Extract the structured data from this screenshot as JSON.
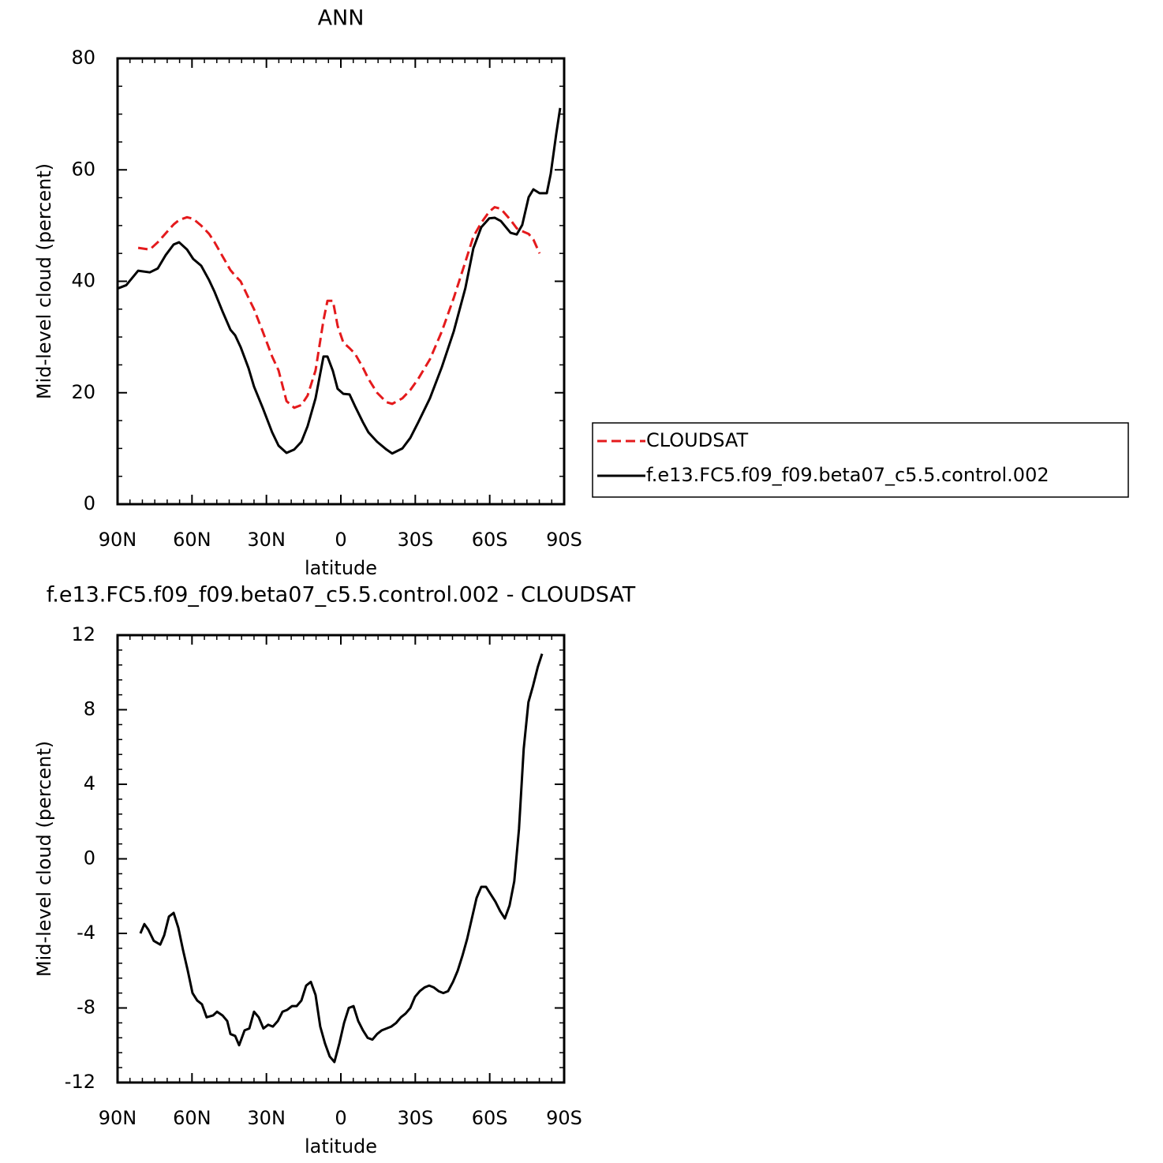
{
  "chart_data": [
    {
      "type": "line",
      "title": "ANN",
      "xlabel": "latitude",
      "ylabel": "Mid-level cloud (percent)",
      "x": [
        90,
        86.5,
        81.7,
        77.0,
        73.8,
        70.6,
        67.4,
        65.2,
        62.0,
        59.5,
        56.3,
        53.1,
        50.9,
        47.7,
        44.5,
        42.6,
        40.4,
        37.2,
        35.0,
        31.5,
        27.7,
        25.1,
        21.9,
        18.8,
        15.9,
        13.4,
        10.2,
        7.0,
        5.4,
        3.2,
        1.3,
        -1.0,
        -3.5,
        -5.7,
        -8.9,
        -11.1,
        -14.6,
        -18.4,
        -20.7,
        -24.8,
        -28.0,
        -31.2,
        -35.9,
        -40.7,
        -45.5,
        -50.2,
        -53.4,
        -56.6,
        -59.8,
        -62.0,
        -64.5,
        -68.4,
        -70.9,
        -73.1,
        -75.7,
        -77.6,
        -80.1,
        -83.0,
        -84.6,
        -86.8,
        -88.4
      ],
      "series": [
        {
          "name": "CLOUDSAT",
          "color": "#e41a1c",
          "linestyle": "dashed",
          "values": [
            null,
            null,
            46.0,
            45.7,
            47.0,
            48.6,
            50.2,
            51.0,
            51.5,
            51.2,
            50.0,
            48.5,
            47.0,
            44.5,
            42.0,
            41.0,
            40.0,
            37.0,
            35.0,
            31.0,
            26.5,
            24.0,
            18.5,
            17.3,
            17.8,
            19.5,
            24.0,
            33.0,
            36.5,
            36.5,
            32.0,
            29.0,
            28.0,
            27.0,
            24.5,
            22.5,
            20.0,
            18.3,
            18.0,
            19.0,
            20.5,
            22.5,
            26.0,
            31.0,
            37.0,
            43.5,
            48.0,
            50.5,
            52.5,
            53.3,
            53.0,
            51.0,
            49.5,
            49.0,
            48.5,
            47.5,
            45.0,
            null,
            null,
            null,
            null
          ]
        },
        {
          "name": "f.e13.FC5.f09_f09.beta07_c5.5.control.002",
          "color": "#000000",
          "linestyle": "solid",
          "values": [
            38.7,
            39.3,
            41.9,
            41.6,
            42.3,
            44.7,
            46.6,
            47.0,
            45.7,
            44.0,
            42.8,
            40.2,
            38.1,
            34.6,
            31.3,
            30.3,
            28.2,
            24.4,
            21.1,
            17.3,
            12.9,
            10.5,
            9.2,
            9.8,
            11.2,
            14.0,
            19.0,
            26.5,
            26.5,
            23.9,
            20.7,
            19.8,
            19.7,
            17.6,
            14.7,
            12.9,
            11.2,
            9.8,
            9.1,
            10.0,
            11.9,
            14.7,
            19.0,
            24.6,
            31.0,
            38.8,
            45.9,
            49.7,
            51.3,
            51.4,
            50.8,
            48.7,
            48.4,
            50.1,
            55.1,
            56.5,
            55.8,
            55.8,
            59.3,
            66.4,
            71.1
          ]
        }
      ],
      "xlim": [
        90,
        -90
      ],
      "ylim": [
        0,
        80
      ],
      "xticks": [
        {
          "value": 90,
          "label": "90N"
        },
        {
          "value": 60,
          "label": "60N"
        },
        {
          "value": 30,
          "label": "30N"
        },
        0,
        {
          "value": -30,
          "label": "30S"
        },
        {
          "value": -60,
          "label": "60S"
        },
        {
          "value": -90,
          "label": "90S"
        }
      ],
      "yticks": [
        0,
        20,
        40,
        60,
        80
      ],
      "legend": "right"
    },
    {
      "type": "line",
      "title": "f.e13.FC5.f09_f09.beta07_c5.5.control.002 - CLOUDSAT",
      "xlabel": "latitude",
      "ylabel": "Mid-level cloud (percent)",
      "x": [
        80.8,
        79.2,
        77.6,
        75.4,
        72.8,
        71.2,
        69.3,
        67.4,
        65.5,
        63.6,
        61.7,
        59.8,
        57.9,
        56.0,
        54.1,
        51.5,
        49.9,
        47.7,
        45.8,
        44.5,
        42.6,
        41.0,
        38.8,
        36.9,
        35.0,
        33.1,
        31.2,
        29.3,
        27.4,
        25.4,
        23.5,
        21.6,
        19.7,
        17.8,
        15.9,
        14.0,
        12.1,
        10.2,
        8.3,
        6.4,
        4.5,
        2.6,
        0.6,
        -1.3,
        -3.2,
        -5.1,
        -7.0,
        -8.9,
        -10.8,
        -12.7,
        -14.6,
        -16.5,
        -18.4,
        -20.3,
        -22.3,
        -24.2,
        -26.1,
        -28.0,
        -29.9,
        -31.8,
        -33.7,
        -35.6,
        -37.5,
        -39.4,
        -41.3,
        -43.2,
        -45.2,
        -47.1,
        -49.0,
        -50.9,
        -52.8,
        -54.7,
        -56.6,
        -58.5,
        -60.4,
        -62.3,
        -64.2,
        -66.1,
        -68.0,
        -69.9,
        -71.8,
        -73.7,
        -75.6,
        -77.5,
        -79.4,
        -81.1
      ],
      "values": [
        -4.0,
        -3.5,
        -3.8,
        -4.4,
        -4.6,
        -4.1,
        -3.1,
        -2.9,
        -3.7,
        -4.9,
        -6.0,
        -7.2,
        -7.6,
        -7.8,
        -8.5,
        -8.4,
        -8.2,
        -8.4,
        -8.7,
        -9.4,
        -9.5,
        -10.0,
        -9.2,
        -9.1,
        -8.2,
        -8.5,
        -9.1,
        -8.9,
        -9.0,
        -8.7,
        -8.2,
        -8.1,
        -7.9,
        -7.9,
        -7.6,
        -6.8,
        -6.6,
        -7.3,
        -9.0,
        -9.9,
        -10.6,
        -10.9,
        -9.9,
        -8.8,
        -8.0,
        -7.9,
        -8.7,
        -9.2,
        -9.6,
        -9.7,
        -9.4,
        -9.2,
        -9.1,
        -9.0,
        -8.8,
        -8.5,
        -8.3,
        -8.0,
        -7.4,
        -7.1,
        -6.9,
        -6.8,
        -6.9,
        -7.1,
        -7.2,
        -7.1,
        -6.6,
        -6.0,
        -5.2,
        -4.3,
        -3.2,
        -2.1,
        -1.5,
        -1.5,
        -1.9,
        -2.3,
        -2.8,
        -3.2,
        -2.5,
        -1.2,
        1.6,
        5.9,
        8.4,
        9.3,
        10.3,
        11.0
      ],
      "color": "#000000",
      "xlim": [
        90,
        -90
      ],
      "ylim": [
        -12,
        12
      ],
      "xticks": [
        {
          "value": 90,
          "label": "90N"
        },
        {
          "value": 60,
          "label": "60N"
        },
        {
          "value": 30,
          "label": "30N"
        },
        0,
        {
          "value": -30,
          "label": "30S"
        },
        {
          "value": -60,
          "label": "60S"
        },
        {
          "value": -90,
          "label": "90S"
        }
      ],
      "yticks": [
        -12,
        -8,
        -4,
        0,
        4,
        8,
        12
      ]
    }
  ]
}
